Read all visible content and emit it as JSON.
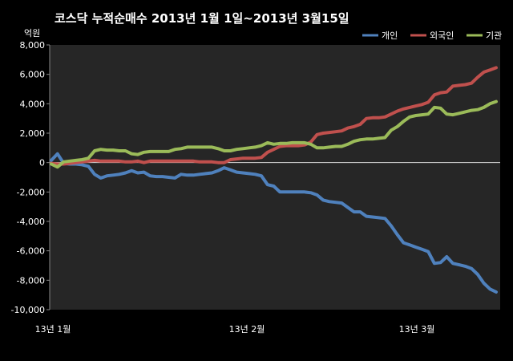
{
  "chart_data": {
    "type": "line",
    "title": "코스닥  누적순매수 2013년 1월 1일~2013년 3월15일",
    "unit_label": "억원",
    "ylim": [
      -10000,
      8000
    ],
    "y_ticks": [
      "8,000",
      "6,000",
      "4,000",
      "2,000",
      "0",
      "-2,000",
      "-4,000",
      "-6,000",
      "-8,000",
      "-10,000"
    ],
    "y_tick_values": [
      8000,
      6000,
      4000,
      2000,
      0,
      -2000,
      -4000,
      -6000,
      -8000,
      -10000
    ],
    "x_labels": [
      "13년 1월",
      "13년 2월",
      "13년 3월"
    ],
    "legend_position": "top-right",
    "grid": false,
    "series": [
      {
        "name": "개인",
        "color": "#4F81BD",
        "values": [
          150,
          600,
          -50,
          -100,
          -100,
          -150,
          -250,
          -800,
          -1050,
          -900,
          -850,
          -800,
          -700,
          -550,
          -700,
          -650,
          -900,
          -950,
          -950,
          -1000,
          -1050,
          -800,
          -850,
          -850,
          -800,
          -750,
          -700,
          -550,
          -350,
          -500,
          -650,
          -700,
          -750,
          -800,
          -900,
          -1500,
          -1600,
          -2000,
          -2000,
          -2000,
          -2000,
          -2000,
          -2050,
          -2200,
          -2550,
          -2650,
          -2700,
          -2750,
          -3050,
          -3350,
          -3350,
          -3650,
          -3700,
          -3750,
          -3800,
          -4300,
          -4900,
          -5450,
          -5600,
          -5750,
          -5900,
          -6050,
          -6850,
          -6800,
          -6400,
          -6850,
          -6950,
          -7050,
          -7200,
          -7600,
          -8200,
          -8600,
          -8800
        ]
      },
      {
        "name": "외국인",
        "color": "#C0504D",
        "values": [
          -50,
          -100,
          -100,
          -50,
          0,
          50,
          100,
          150,
          100,
          100,
          100,
          100,
          50,
          50,
          100,
          0,
          100,
          100,
          100,
          100,
          100,
          100,
          100,
          100,
          50,
          50,
          50,
          0,
          0,
          200,
          250,
          300,
          300,
          300,
          350,
          700,
          900,
          1100,
          1150,
          1150,
          1150,
          1200,
          1400,
          1900,
          2000,
          2050,
          2100,
          2150,
          2350,
          2450,
          2600,
          3000,
          3050,
          3050,
          3100,
          3300,
          3500,
          3650,
          3750,
          3850,
          3950,
          4100,
          4600,
          4750,
          4800,
          5200,
          5250,
          5300,
          5400,
          5800,
          6150,
          6300,
          6450
        ]
      },
      {
        "name": "기관",
        "color": "#9BBB59",
        "values": [
          -100,
          -300,
          50,
          100,
          150,
          200,
          300,
          800,
          900,
          850,
          850,
          800,
          800,
          600,
          550,
          700,
          750,
          750,
          750,
          750,
          900,
          950,
          1050,
          1050,
          1050,
          1050,
          1050,
          950,
          800,
          800,
          900,
          950,
          1000,
          1050,
          1150,
          1350,
          1250,
          1300,
          1300,
          1350,
          1350,
          1350,
          1250,
          1000,
          1000,
          1050,
          1100,
          1100,
          1250,
          1450,
          1550,
          1600,
          1600,
          1650,
          1700,
          2200,
          2450,
          2800,
          3100,
          3200,
          3250,
          3300,
          3750,
          3700,
          3300,
          3250,
          3350,
          3450,
          3550,
          3600,
          3750,
          4000,
          4150
        ]
      }
    ]
  }
}
